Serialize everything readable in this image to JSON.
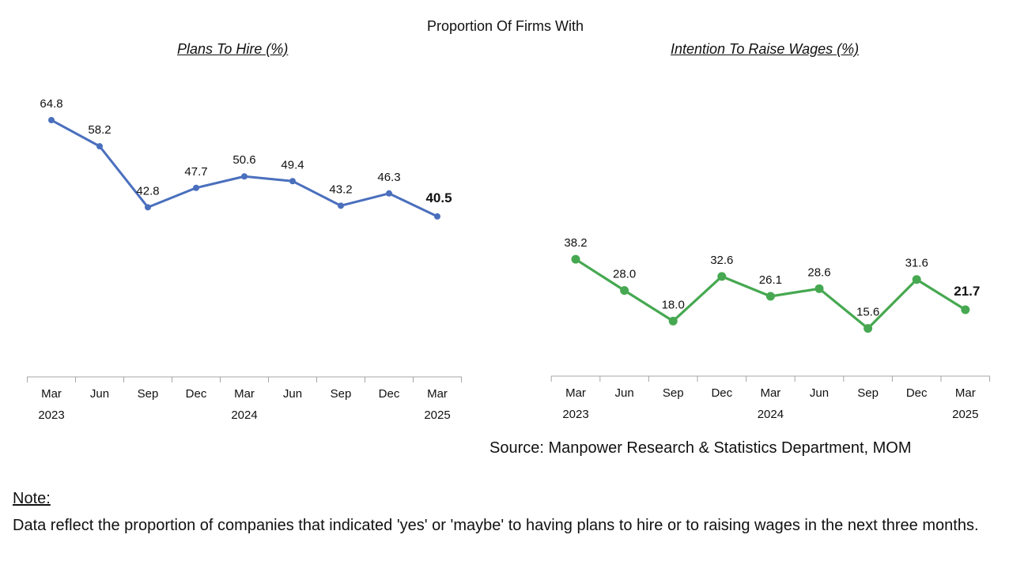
{
  "title": "Proportion Of Firms With",
  "chart_data": [
    {
      "type": "line",
      "title": "Plans To Hire (%)",
      "categories": [
        "Mar",
        "Jun",
        "Sep",
        "Dec",
        "Mar",
        "Jun",
        "Sep",
        "Dec",
        "Mar"
      ],
      "year_labels": [
        "2023",
        "",
        "",
        "",
        "2024",
        "",
        "",
        "",
        "2025"
      ],
      "series": [
        {
          "values": [
            64.8,
            58.2,
            42.8,
            47.7,
            50.6,
            49.4,
            43.2,
            46.3,
            40.5
          ],
          "color": "#4a6fbd"
        }
      ],
      "ylim": [
        0,
        100
      ],
      "grid": false,
      "legend": "none",
      "highlight_last": true
    },
    {
      "type": "line",
      "title": "Intention To Raise Wages (%)",
      "categories": [
        "Mar",
        "Jun",
        "Sep",
        "Dec",
        "Mar",
        "Jun",
        "Sep",
        "Dec",
        "Mar"
      ],
      "year_labels": [
        "2023",
        "",
        "",
        "",
        "2024",
        "",
        "",
        "",
        "2025"
      ],
      "series": [
        {
          "values": [
            38.2,
            28.0,
            18.0,
            32.6,
            26.1,
            28.6,
            15.6,
            31.6,
            21.7
          ],
          "color": "#46a851"
        }
      ],
      "ylim": [
        0,
        78
      ],
      "grid": false,
      "legend": "none",
      "highlight_last": true
    }
  ],
  "source": "Source: Manpower Research & Statistics Department, MOM",
  "note": {
    "heading": "Note:",
    "text": "Data reflect the proportion of companies that indicated 'yes' or 'maybe' to having plans to hire or to raising wages in the next three months."
  }
}
